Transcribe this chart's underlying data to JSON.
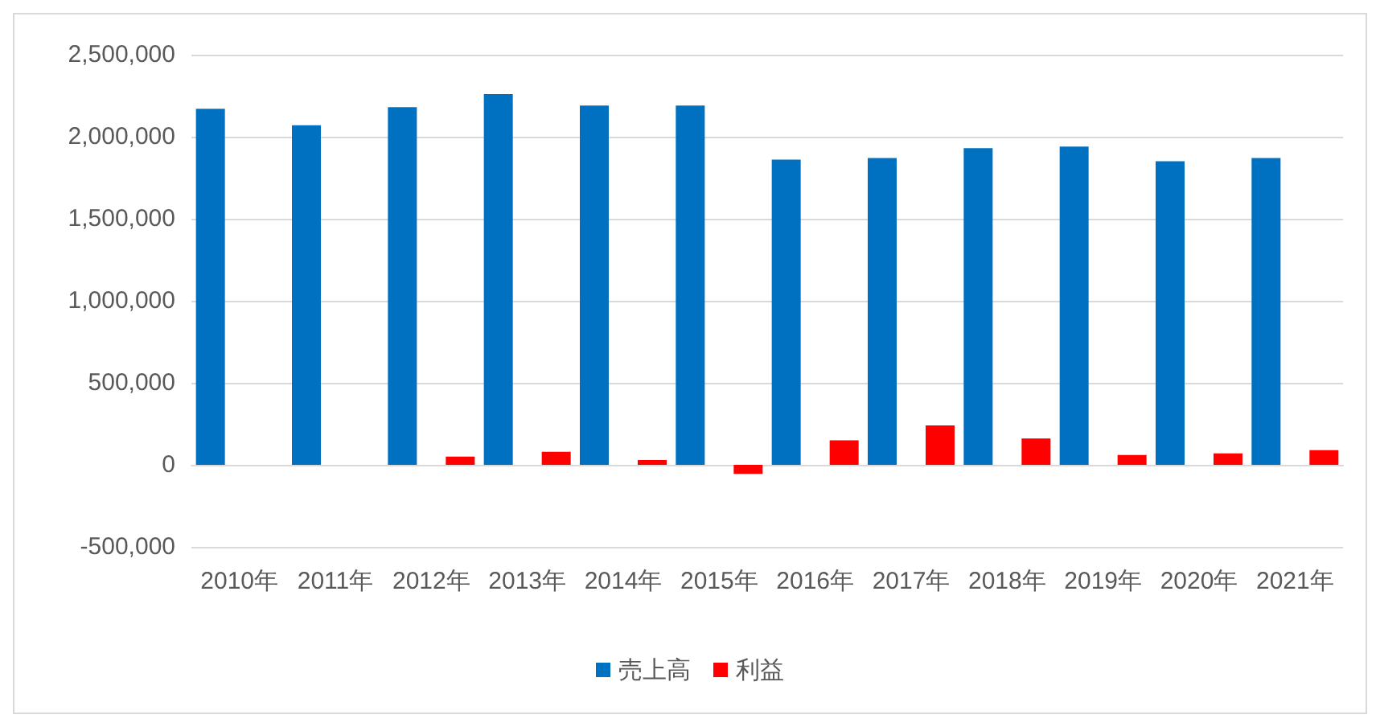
{
  "chart_data": {
    "type": "bar",
    "categories": [
      "2010年",
      "2011年",
      "2012年",
      "2013年",
      "2014年",
      "2015年",
      "2016年",
      "2017年",
      "2018年",
      "2019年",
      "2020年",
      "2021年"
    ],
    "series": [
      {
        "name": "売上高",
        "color": "#0070c0",
        "values": [
          2170000,
          2070000,
          2180000,
          2260000,
          2190000,
          2190000,
          1860000,
          1870000,
          1930000,
          1940000,
          1850000,
          1870000
        ]
      },
      {
        "name": "利益",
        "color": "#ff0000",
        "values": [
          0,
          0,
          50000,
          80000,
          30000,
          -55000,
          150000,
          240000,
          160000,
          60000,
          70000,
          90000
        ]
      }
    ],
    "ylim": [
      -500000,
      2500000
    ],
    "yticks": [
      {
        "value": -500000,
        "label": "-500,000"
      },
      {
        "value": 0,
        "label": "0"
      },
      {
        "value": 500000,
        "label": "500,000"
      },
      {
        "value": 1000000,
        "label": "1,000,000"
      },
      {
        "value": 1500000,
        "label": "1,500,000"
      },
      {
        "value": 2000000,
        "label": "2,000,000"
      },
      {
        "value": 2500000,
        "label": "2,500,000"
      }
    ],
    "grid": "y",
    "legend": "bottom"
  }
}
